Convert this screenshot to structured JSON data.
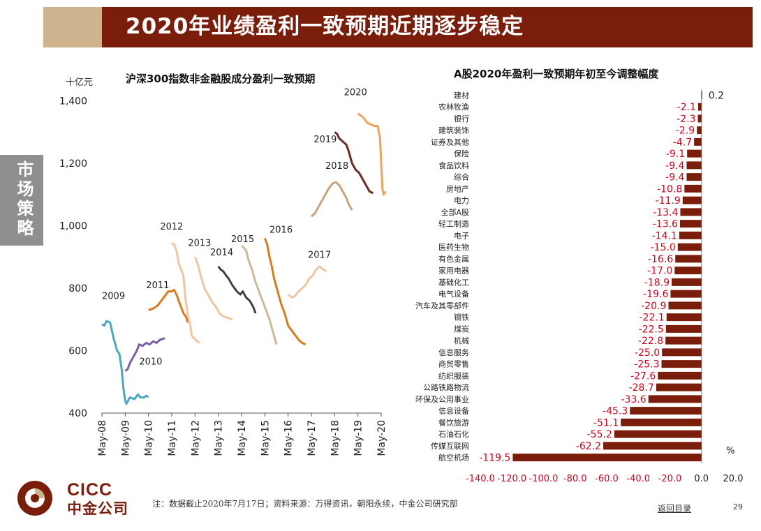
{
  "header": {
    "title": "2020年业绩盈利一致预期近期逐步稳定",
    "section": "市场策略"
  },
  "colors": {
    "brand": "#7a1e0b",
    "tan": "#cdb38e",
    "bar": "#7a1e0b",
    "negative_label": "#d0021b"
  },
  "chart_data": [
    {
      "type": "line",
      "title": "沪深300指数非金融股成分盈利一致预期",
      "ylabel": "十亿元",
      "ylim": [
        400,
        1500
      ],
      "yticks": [
        "400",
        "600",
        "800",
        "1,000",
        "1,200",
        "1,400"
      ],
      "xticks": [
        "May-08",
        "May-09",
        "May-10",
        "May-11",
        "May-12",
        "May-13",
        "May-14",
        "May-15",
        "May-16",
        "May-17",
        "May-18",
        "May-19",
        "May-20"
      ],
      "series": [
        {
          "name": "2009",
          "color": "#4aa7c0",
          "points": [
            [
              0.0,
              685
            ],
            [
              0.1,
              680
            ],
            [
              0.2,
              695
            ],
            [
              0.35,
              690
            ],
            [
              0.5,
              640
            ],
            [
              0.65,
              600
            ],
            [
              0.75,
              590
            ],
            [
              0.85,
              540
            ],
            [
              0.92,
              480
            ],
            [
              1.0,
              440
            ],
            [
              1.05,
              430
            ],
            [
              1.2,
              450
            ],
            [
              1.4,
              445
            ],
            [
              1.55,
              460
            ],
            [
              1.65,
              450
            ],
            [
              1.8,
              450
            ],
            [
              1.9,
              455
            ],
            [
              2.0,
              452
            ]
          ],
          "label_x": 0.0,
          "label_y": 765
        },
        {
          "name": "2010",
          "color": "#7b5ea7",
          "points": [
            [
              1.0,
              535
            ],
            [
              1.1,
              540
            ],
            [
              1.2,
              560
            ],
            [
              1.35,
              580
            ],
            [
              1.5,
              600
            ],
            [
              1.6,
              620
            ],
            [
              1.75,
              615
            ],
            [
              1.9,
              625
            ],
            [
              2.05,
              620
            ],
            [
              2.2,
              630
            ],
            [
              2.35,
              625
            ],
            [
              2.5,
              635
            ],
            [
              2.7,
              640
            ]
          ],
          "label_x": 1.6,
          "label_y": 555
        },
        {
          "name": "2011",
          "color": "#d97a1e",
          "points": [
            [
              2.0,
              730
            ],
            [
              2.2,
              735
            ],
            [
              2.4,
              745
            ],
            [
              2.55,
              760
            ],
            [
              2.7,
              775
            ],
            [
              2.85,
              790
            ],
            [
              3.0,
              790
            ],
            [
              3.1,
              795
            ],
            [
              3.2,
              780
            ],
            [
              3.3,
              760
            ],
            [
              3.4,
              740
            ],
            [
              3.5,
              720
            ],
            [
              3.6,
              710
            ],
            [
              3.7,
              690
            ]
          ],
          "label_x": 1.9,
          "label_y": 800
        },
        {
          "name": "2012",
          "color": "#f3c4a0",
          "points": [
            [
              3.0,
              945
            ],
            [
              3.1,
              940
            ],
            [
              3.2,
              920
            ],
            [
              3.3,
              880
            ],
            [
              3.4,
              860
            ],
            [
              3.5,
              840
            ],
            [
              3.55,
              800
            ],
            [
              3.6,
              760
            ],
            [
              3.7,
              710
            ],
            [
              3.8,
              680
            ],
            [
              3.85,
              650
            ],
            [
              3.95,
              640
            ],
            [
              4.1,
              630
            ],
            [
              4.2,
              625
            ]
          ],
          "label_x": 2.5,
          "label_y": 988
        },
        {
          "name": "2013",
          "color": "#f3c4a0",
          "points": [
            [
              4.0,
              900
            ],
            [
              4.1,
              880
            ],
            [
              4.25,
              840
            ],
            [
              4.4,
              800
            ],
            [
              4.55,
              780
            ],
            [
              4.7,
              760
            ],
            [
              4.9,
              740
            ],
            [
              5.05,
              720
            ],
            [
              5.2,
              710
            ],
            [
              5.4,
              705
            ],
            [
              5.6,
              700
            ]
          ],
          "label_x": 3.7,
          "label_y": 935
        },
        {
          "name": "2014",
          "color": "#404040",
          "points": [
            [
              5.0,
              870
            ],
            [
              5.1,
              860
            ],
            [
              5.2,
              855
            ],
            [
              5.3,
              845
            ],
            [
              5.45,
              830
            ],
            [
              5.6,
              810
            ],
            [
              5.8,
              790
            ],
            [
              5.95,
              780
            ],
            [
              6.05,
              790
            ],
            [
              6.2,
              770
            ],
            [
              6.35,
              760
            ],
            [
              6.5,
              740
            ],
            [
              6.6,
              720
            ]
          ],
          "label_x": 4.65,
          "label_y": 905
        },
        {
          "name": "2015",
          "color": "#c9bb96",
          "points": [
            [
              6.0,
              935
            ],
            [
              6.1,
              930
            ],
            [
              6.2,
              920
            ],
            [
              6.3,
              890
            ],
            [
              6.45,
              860
            ],
            [
              6.6,
              820
            ],
            [
              6.75,
              790
            ],
            [
              6.9,
              760
            ],
            [
              7.05,
              730
            ],
            [
              7.2,
              700
            ],
            [
              7.35,
              660
            ],
            [
              7.5,
              620
            ]
          ],
          "label_x": 5.55,
          "label_y": 948
        },
        {
          "name": "2016",
          "color": "#d97a1e",
          "points": [
            [
              7.0,
              960
            ],
            [
              7.1,
              940
            ],
            [
              7.2,
              900
            ],
            [
              7.3,
              870
            ],
            [
              7.4,
              830
            ],
            [
              7.55,
              790
            ],
            [
              7.7,
              750
            ],
            [
              7.85,
              720
            ],
            [
              8.0,
              680
            ],
            [
              8.15,
              665
            ],
            [
              8.3,
              650
            ],
            [
              8.45,
              635
            ],
            [
              8.6,
              625
            ],
            [
              8.75,
              620
            ]
          ],
          "label_x": 7.2,
          "label_y": 978
        },
        {
          "name": "2017",
          "color": "#f3c4a0",
          "points": [
            [
              8.0,
              780
            ],
            [
              8.15,
              770
            ],
            [
              8.3,
              775
            ],
            [
              8.45,
              790
            ],
            [
              8.6,
              800
            ],
            [
              8.75,
              810
            ],
            [
              8.9,
              830
            ],
            [
              9.05,
              840
            ],
            [
              9.2,
              860
            ],
            [
              9.35,
              870
            ],
            [
              9.5,
              860
            ],
            [
              9.65,
              855
            ]
          ],
          "label_x": 8.85,
          "label_y": 897
        },
        {
          "name": "2018",
          "color": "#c9a27e",
          "points": [
            [
              9.0,
              1030
            ],
            [
              9.15,
              1040
            ],
            [
              9.3,
              1060
            ],
            [
              9.45,
              1080
            ],
            [
              9.6,
              1100
            ],
            [
              9.75,
              1120
            ],
            [
              9.9,
              1135
            ],
            [
              10.05,
              1140
            ],
            [
              10.2,
              1130
            ],
            [
              10.35,
              1110
            ],
            [
              10.5,
              1090
            ],
            [
              10.6,
              1070
            ],
            [
              10.75,
              1050
            ]
          ],
          "label_x": 9.6,
          "label_y": 1183
        },
        {
          "name": "2019",
          "color": "#6b2a26",
          "points": [
            [
              10.0,
              1300
            ],
            [
              10.1,
              1295
            ],
            [
              10.2,
              1280
            ],
            [
              10.35,
              1270
            ],
            [
              10.5,
              1260
            ],
            [
              10.6,
              1240
            ],
            [
              10.75,
              1200
            ],
            [
              10.9,
              1180
            ],
            [
              11.05,
              1170
            ],
            [
              11.2,
              1150
            ],
            [
              11.35,
              1130
            ],
            [
              11.5,
              1110
            ],
            [
              11.65,
              1105
            ]
          ],
          "label_x": 9.1,
          "label_y": 1268
        },
        {
          "name": "2020",
          "color": "#f0a35a",
          "points": [
            [
              11.0,
              1360
            ],
            [
              11.1,
              1355
            ],
            [
              11.25,
              1345
            ],
            [
              11.4,
              1330
            ],
            [
              11.55,
              1325
            ],
            [
              11.7,
              1320
            ],
            [
              11.85,
              1320
            ],
            [
              11.95,
              1280
            ],
            [
              12.0,
              1200
            ],
            [
              12.05,
              1120
            ],
            [
              12.1,
              1100
            ],
            [
              12.2,
              1110
            ]
          ],
          "label_x": 10.4,
          "label_y": 1418
        }
      ]
    },
    {
      "type": "bar",
      "orientation": "horizontal",
      "title": "A股2020年盈利一致预期年初至今调整幅度",
      "unit": "%",
      "xlim": [
        -140,
        20
      ],
      "xticks": [
        "-140.0",
        "-120.0",
        "-100.0",
        "-80.0",
        "-60.0",
        "-40.0",
        "-20.0",
        "0.0",
        "20.0"
      ],
      "categories": [
        "建材",
        "农林牧渔",
        "银行",
        "建筑装饰",
        "证券及其他",
        "保险",
        "食品饮料",
        "综合",
        "房地产",
        "电力",
        "全部A股",
        "轻工制造",
        "电子",
        "医药生物",
        "有色金属",
        "家用电器",
        "基础化工",
        "电气设备",
        "汽车及其零部件",
        "钢铁",
        "煤炭",
        "机械",
        "信息服务",
        "商贸零售",
        "纺织服装",
        "公路铁路物流",
        "环保及公用事业",
        "信息设备",
        "餐饮旅游",
        "石油石化",
        "传媒互联网",
        "航空机场"
      ],
      "values": [
        0.2,
        -2.1,
        -2.3,
        -2.9,
        -4.7,
        -9.1,
        -9.4,
        -9.4,
        -10.8,
        -11.9,
        -13.4,
        -13.6,
        -14.1,
        -15.0,
        -16.6,
        -17.0,
        -18.9,
        -19.6,
        -20.9,
        -22.1,
        -22.5,
        -22.8,
        -25.0,
        -25.3,
        -27.6,
        -28.7,
        -33.6,
        -45.3,
        -51.1,
        -55.2,
        -62.2,
        -119.5
      ],
      "value_labels": [
        "0.2",
        "-2.1",
        "-2.3",
        "-2.9",
        "-4.7",
        "-9.1",
        "-9.4",
        "-9.4",
        "-10.8",
        "-11.9",
        "-13.4",
        "-13.6",
        "-14.1",
        "-15.0",
        "-16.6",
        "-17.0",
        "-18.9",
        "-19.6",
        "-20.9",
        "-22.1",
        "-22.5",
        "-22.8",
        "-25.0",
        "-25.3",
        "-27.6",
        "-28.7",
        "-33.6",
        "-45.3",
        "-51.1",
        "-55.2",
        "-62.2",
        "-119.5"
      ]
    }
  ],
  "footer": {
    "note": "注：数据截止2020年7月17日；资料来源：万得资讯，朝阳永续，中金公司研究部",
    "link": "返回目录",
    "page": "29",
    "logo_en": "CICC",
    "logo_cn": "中金公司"
  }
}
